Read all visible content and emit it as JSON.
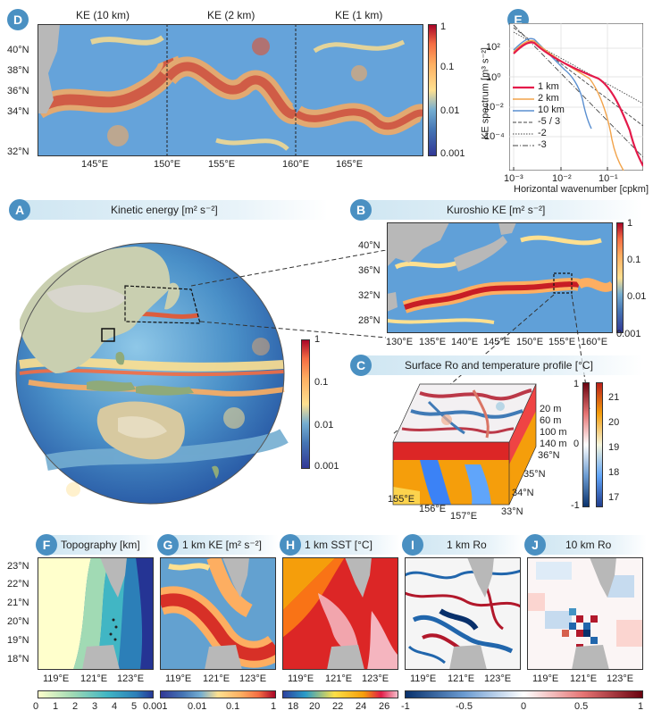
{
  "panel_d": {
    "label": "D",
    "titles": [
      "KE (10 km)",
      "KE (2 km)",
      "KE (1 km)"
    ],
    "lat_ticks": [
      "40°N",
      "38°N",
      "36°N",
      "34°N",
      "32°N"
    ],
    "lon_ticks": [
      "145°E",
      "150°E",
      "155°E",
      "160°E",
      "165°E"
    ],
    "cbar_ticks": [
      "1",
      "0.1",
      "0.01",
      "0.001"
    ]
  },
  "panel_e": {
    "label": "E",
    "ylabel": "KE spectrum [m³ s⁻²]",
    "xlabel": "Horizontal wavenumber [cpkm]",
    "yticks": [
      "10²",
      "10⁰",
      "10⁻²",
      "10⁻⁴"
    ],
    "xticks": [
      "10⁻³",
      "10⁻²",
      "10⁻¹"
    ],
    "legend": [
      "1 km",
      "2 km",
      "10 km",
      "-5 / 3",
      "-2",
      "-3"
    ],
    "colors": {
      "km1": "#e41a4a",
      "km2": "#f2a34a",
      "km10": "#5a8fd0"
    }
  },
  "panel_a": {
    "label": "A",
    "title": "Kinetic energy [m² s⁻²]",
    "cbar_ticks": [
      "1",
      "0.1",
      "0.01",
      "0.001"
    ]
  },
  "panel_b": {
    "label": "B",
    "title": "Kuroshio KE [m² s⁻²]",
    "lat_ticks": [
      "40°N",
      "36°N",
      "32°N",
      "28°N"
    ],
    "lon_ticks": [
      "130°E",
      "135°E",
      "140°E",
      "145°E",
      "150°E",
      "155°E",
      "160°E"
    ],
    "cbar_ticks": [
      "1",
      "0.1",
      "0.01",
      "0.001"
    ]
  },
  "panel_c": {
    "label": "C",
    "title": "Surface Ro and temperature profile [°C]",
    "depth_ticks": [
      "20 m",
      "60 m",
      "100 m",
      "140 m"
    ],
    "lat_ticks": [
      "36°N",
      "35°N",
      "34°N",
      "33°N"
    ],
    "lon_ticks": [
      "155°E",
      "156°E",
      "157°E"
    ],
    "ro_ticks": [
      "1",
      "0",
      "-1"
    ],
    "temp_ticks": [
      "21",
      "20",
      "19",
      "18",
      "17"
    ]
  },
  "bottom_row": {
    "lat_ticks": [
      "23°N",
      "22°N",
      "21°N",
      "20°N",
      "19°N",
      "18°N"
    ],
    "lon_ticks": [
      "119°E",
      "121°E",
      "123°E"
    ],
    "panels": [
      {
        "label": "F",
        "title": "Topography [km]",
        "cbar_ticks": [
          "0",
          "1",
          "2",
          "3",
          "4",
          "5"
        ]
      },
      {
        "label": "G",
        "title": "1 km KE [m² s⁻²]",
        "cbar_ticks": [
          "0.001",
          "0.01",
          "0.1",
          "1"
        ]
      },
      {
        "label": "H",
        "title": "1 km SST [°C]",
        "cbar_ticks": [
          "18",
          "20",
          "22",
          "24",
          "26"
        ]
      },
      {
        "label": "I",
        "title": "1 km Ro",
        "cbar_ticks": [
          "-1",
          "-0.5",
          "0",
          "0.5",
          "1"
        ]
      },
      {
        "label": "J",
        "title": "10 km Ro",
        "cbar_ticks": []
      }
    ]
  }
}
